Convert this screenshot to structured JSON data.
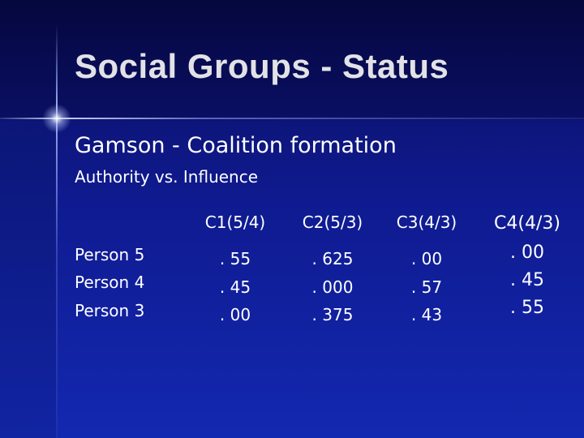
{
  "slide": {
    "title": "Social Groups - Status",
    "subtitle": "Gamson - Coalition formation",
    "subheading": "Authority vs. Influence"
  },
  "table": {
    "rows": [
      "Person 5",
      "Person 4",
      "Person 3"
    ],
    "columns": [
      {
        "header": "C1(5/4)",
        "values": [
          ". 55",
          ". 45",
          ". 00"
        ]
      },
      {
        "header": "C2(5/3)",
        "values": [
          ". 625",
          ". 000",
          ". 375"
        ]
      },
      {
        "header": "C3(4/3)",
        "values": [
          ". 00",
          ". 57",
          ". 43"
        ]
      },
      {
        "header": "C4(4/3)",
        "values": [
          ". 00",
          ". 45",
          ". 55"
        ]
      }
    ]
  },
  "theme": {
    "background": "#0f1a8f",
    "title_color": "#e2e2e6",
    "text_color": "#ffffff"
  }
}
